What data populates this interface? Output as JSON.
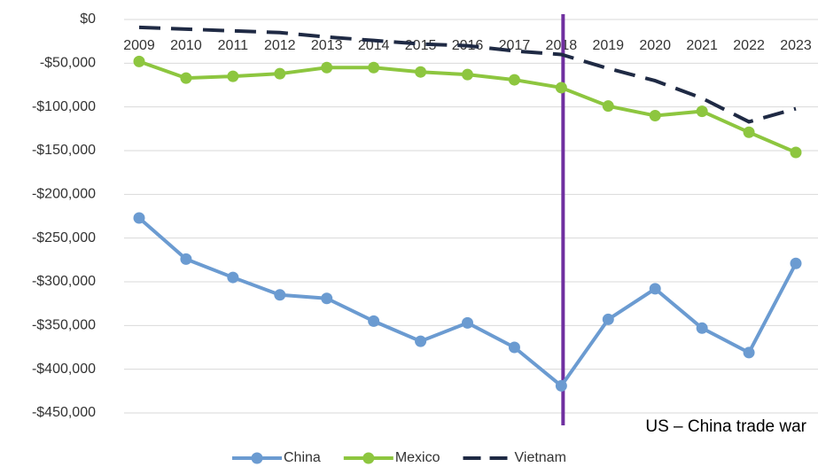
{
  "chart_data": {
    "type": "line",
    "categories": [
      "2009",
      "2010",
      "2011",
      "2012",
      "2013",
      "2014",
      "2015",
      "2016",
      "2017",
      "2018",
      "2019",
      "2020",
      "2021",
      "2022",
      "2023"
    ],
    "series": [
      {
        "name": "China",
        "color": "#6b9bd1",
        "marker": true,
        "dashed": false,
        "values": [
          -227000,
          -274000,
          -295000,
          -315000,
          -319000,
          -345000,
          -368000,
          -347000,
          -375000,
          -419000,
          -343000,
          -308000,
          -353000,
          -381000,
          -279000
        ]
      },
      {
        "name": "Mexico",
        "color": "#8dc63f",
        "marker": true,
        "dashed": false,
        "values": [
          -48000,
          -67000,
          -65000,
          -62000,
          -55000,
          -55000,
          -60000,
          -63000,
          -69000,
          -78000,
          -99000,
          -110000,
          -105000,
          -129000,
          -152000
        ]
      },
      {
        "name": "Vietnam",
        "color": "#1f2a44",
        "marker": false,
        "dashed": true,
        "values": [
          -9000,
          -11000,
          -13000,
          -15000,
          -20000,
          -24000,
          -28000,
          -30000,
          -36000,
          -40000,
          -56000,
          -70000,
          -90000,
          -117000,
          -102000
        ]
      }
    ],
    "ylim": [
      -450000,
      0
    ],
    "yticks": [
      {
        "value": 0,
        "label": "$0"
      },
      {
        "value": -50000,
        "label": "-$50,000"
      },
      {
        "value": -100000,
        "label": "-$100,000"
      },
      {
        "value": -150000,
        "label": "-$150,000"
      },
      {
        "value": -200000,
        "label": "-$200,000"
      },
      {
        "value": -250000,
        "label": "-$250,000"
      },
      {
        "value": -300000,
        "label": "-$300,000"
      },
      {
        "value": -350000,
        "label": "-$350,000"
      },
      {
        "value": -400000,
        "label": "-$400,000"
      },
      {
        "value": -450000,
        "label": "-$450,000"
      }
    ],
    "grid": true,
    "legend": "bottom",
    "annotation": {
      "text": "US – China trade war",
      "x": "2018",
      "color": "#7030a0"
    }
  }
}
